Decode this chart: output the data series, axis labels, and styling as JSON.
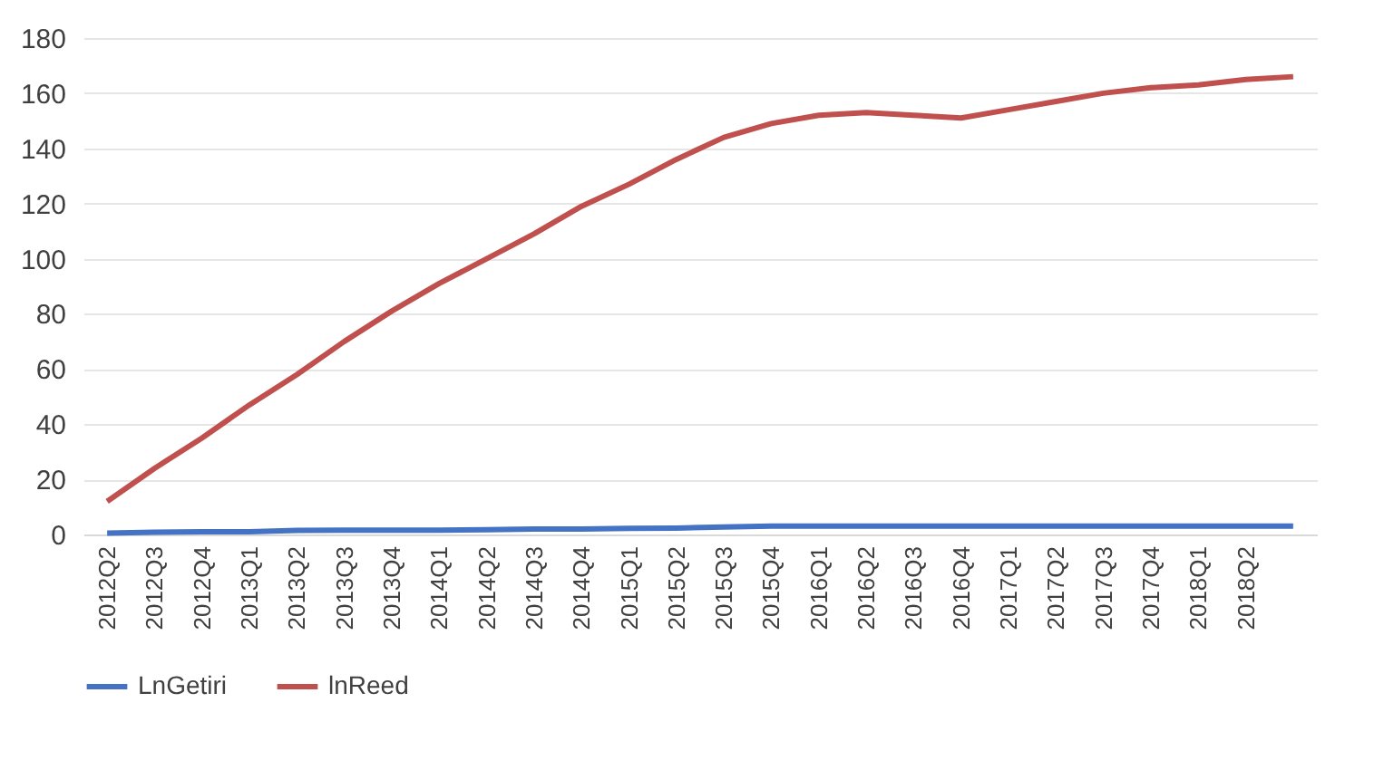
{
  "chart_data": {
    "type": "line",
    "categories": [
      "2012Q2",
      "2012Q3",
      "2012Q4",
      "2013Q1",
      "2013Q2",
      "2013Q3",
      "2013Q4",
      "2014Q1",
      "2014Q2",
      "2014Q3",
      "2014Q4",
      "2015Q1",
      "2015Q2",
      "2015Q3",
      "2015Q4",
      "2016Q1",
      "2016Q2",
      "2016Q3",
      "2016Q4",
      "2017Q1",
      "2017Q2",
      "2017Q3",
      "2017Q4",
      "2018Q1",
      "2018Q2",
      null
    ],
    "series": [
      {
        "name": "LnGetiri",
        "color": "#4472c4",
        "values": [
          0.5,
          0.8,
          1,
          1,
          1.5,
          1.6,
          1.6,
          1.6,
          1.7,
          2,
          2,
          2.2,
          2.3,
          2.7,
          3,
          3,
          3,
          3,
          3,
          3,
          3,
          3,
          3,
          3,
          3,
          3
        ]
      },
      {
        "name": "lnReed",
        "color": "#c0504d",
        "values": [
          12,
          24,
          35,
          47,
          58,
          70,
          81,
          91,
          100,
          109,
          119,
          127,
          136,
          144,
          149,
          152,
          153,
          152,
          151,
          154,
          157,
          160,
          162,
          163,
          165,
          166
        ]
      }
    ],
    "ylim": [
      0,
      180
    ],
    "yticks": [
      0,
      20,
      40,
      60,
      80,
      100,
      120,
      140,
      160,
      180
    ],
    "grid": "y",
    "legend": "bottom",
    "line_style": "solid",
    "marker": "none"
  }
}
